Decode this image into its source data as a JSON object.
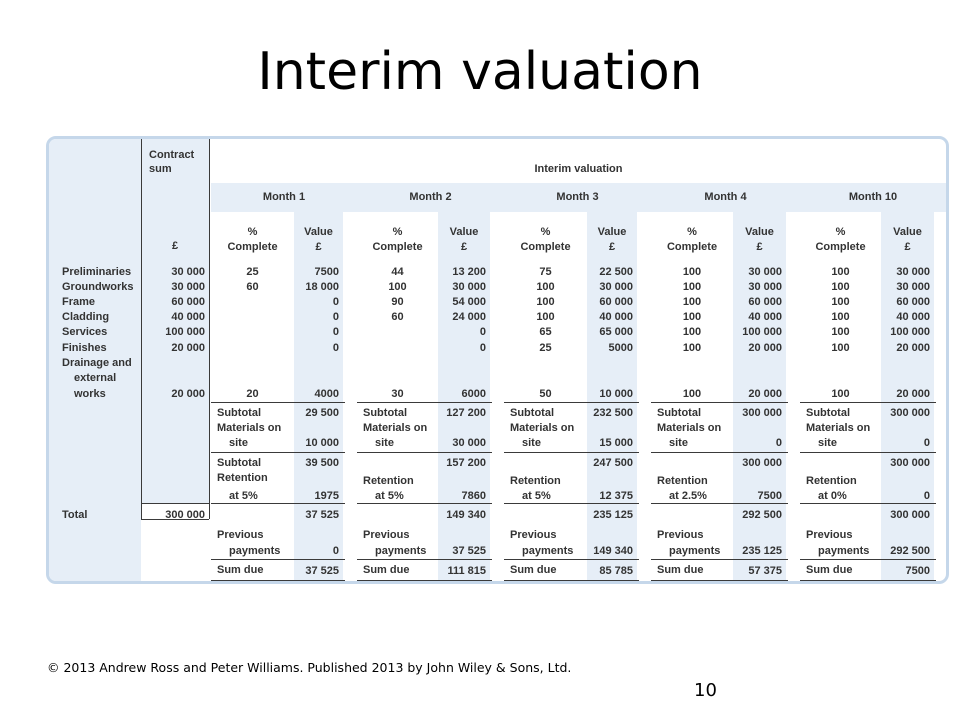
{
  "slide": {
    "title": "Interim valuation",
    "copyright": "© 2013 Andrew Ross and Peter Williams. Published 2013 by John Wiley & Sons, Ltd.",
    "page_number": "10"
  },
  "table": {
    "contract_sum_header": "Contract\nsum",
    "interim_valuation_header": "Interim valuation",
    "currency_header": "£",
    "pct_header": "%\nComplete",
    "value_header": "Value\n£",
    "months": [
      "Month 1",
      "Month 2",
      "Month 3",
      "Month 4",
      "Month 10"
    ],
    "items": [
      {
        "label": "Preliminaries",
        "sum": "30 000",
        "cells": [
          [
            "25",
            "7500"
          ],
          [
            "44",
            "13 200"
          ],
          [
            "75",
            "22 500"
          ],
          [
            "100",
            "30 000"
          ],
          [
            "100",
            "30 000"
          ]
        ]
      },
      {
        "label": "Groundworks",
        "sum": "30 000",
        "cells": [
          [
            "60",
            "18 000"
          ],
          [
            "100",
            "30 000"
          ],
          [
            "100",
            "30 000"
          ],
          [
            "100",
            "30 000"
          ],
          [
            "100",
            "30 000"
          ]
        ]
      },
      {
        "label": "Frame",
        "sum": "60 000",
        "cells": [
          [
            "",
            "0"
          ],
          [
            "90",
            "54 000"
          ],
          [
            "100",
            "60 000"
          ],
          [
            "100",
            "60 000"
          ],
          [
            "100",
            "60 000"
          ]
        ]
      },
      {
        "label": "Cladding",
        "sum": "40 000",
        "cells": [
          [
            "",
            "0"
          ],
          [
            "60",
            "24 000"
          ],
          [
            "100",
            "40 000"
          ],
          [
            "100",
            "40 000"
          ],
          [
            "100",
            "40 000"
          ]
        ]
      },
      {
        "label": "Services",
        "sum": "100 000",
        "cells": [
          [
            "",
            "0"
          ],
          [
            "",
            "0"
          ],
          [
            "65",
            "65 000"
          ],
          [
            "100",
            "100 000"
          ],
          [
            "100",
            "100 000"
          ]
        ]
      },
      {
        "label": "Finishes",
        "sum": "20 000",
        "cells": [
          [
            "",
            "0"
          ],
          [
            "",
            "0"
          ],
          [
            "25",
            "5000"
          ],
          [
            "100",
            "20 000"
          ],
          [
            "100",
            "20 000"
          ]
        ]
      }
    ],
    "drainage": {
      "label_lines": [
        "Drainage and",
        "external",
        "works"
      ],
      "sum": "20 000",
      "cells": [
        [
          "20",
          "4000"
        ],
        [
          "30",
          "6000"
        ],
        [
          "50",
          "10 000"
        ],
        [
          "100",
          "20 000"
        ],
        [
          "100",
          "20 000"
        ]
      ]
    },
    "subtotal_label": "Subtotal",
    "materials_label_lines": [
      "Materials on",
      "site"
    ],
    "retention_label": "Retention",
    "previous_label_lines": [
      "Previous",
      "payments"
    ],
    "sum_due_label": "Sum due",
    "total_label": "Total",
    "total_sum": "300 000",
    "summary": [
      {
        "subtotal1": "29 500",
        "materials": "10 000",
        "subtotal2": "39 500",
        "retention_rate": "at 5%",
        "retention": "1975",
        "net": "37 525",
        "previous": "0",
        "sum_due": "37 525"
      },
      {
        "subtotal1": "127 200",
        "materials": "30 000",
        "subtotal2": "157 200",
        "retention_rate": "at 5%",
        "retention": "7860",
        "net": "149 340",
        "previous": "37 525",
        "sum_due": "111 815"
      },
      {
        "subtotal1": "232 500",
        "materials": "15 000",
        "subtotal2": "247 500",
        "retention_rate": "at 5%",
        "retention": "12 375",
        "net": "235 125",
        "previous": "149 340",
        "sum_due": "85 785"
      },
      {
        "subtotal1": "300 000",
        "materials": "0",
        "subtotal2": "300 000",
        "retention_rate": "at 2.5%",
        "retention": "7500",
        "net": "292 500",
        "previous": "235 125",
        "sum_due": "57 375"
      },
      {
        "subtotal1": "300 000",
        "materials": "0",
        "subtotal2": "300 000",
        "retention_rate": "at 0%",
        "retention": "0",
        "net": "300 000",
        "previous": "292 500",
        "sum_due": "7500"
      }
    ]
  }
}
